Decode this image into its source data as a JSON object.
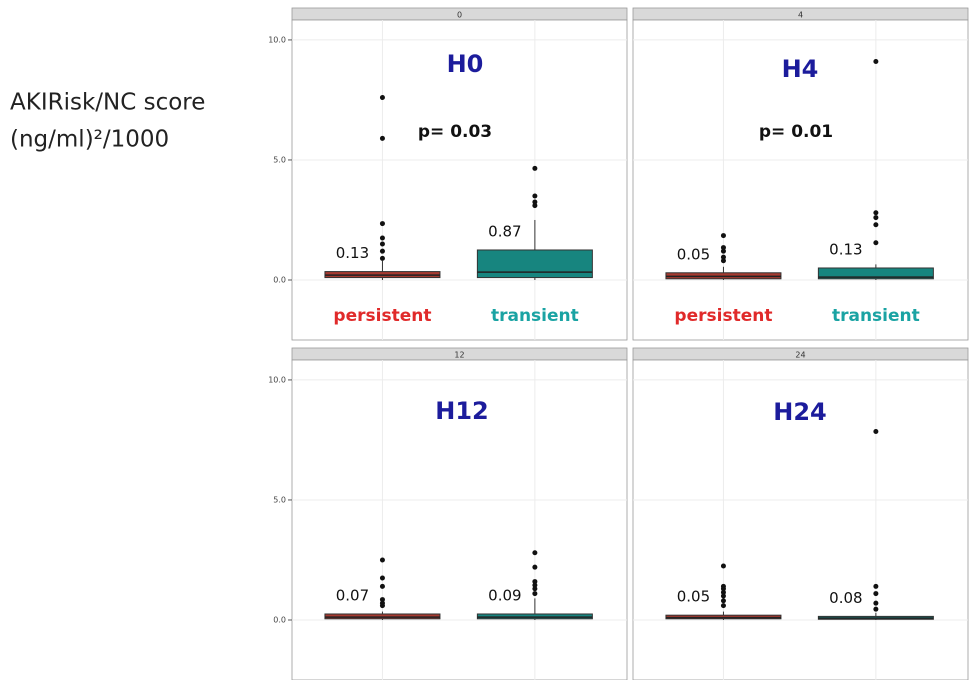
{
  "chart_data": {
    "type": "box",
    "ylabel": [
      "AKIRisk/NC score",
      "(ng/ml)²/1000"
    ],
    "ylim": [
      -2.5,
      10.83
    ],
    "yticks": [
      {
        "value": 0,
        "label": "0.0"
      },
      {
        "value": 5,
        "label": "5.0"
      },
      {
        "value": 10,
        "label": "10.0"
      }
    ],
    "grid": true,
    "categories": [
      "persistent",
      "transient"
    ],
    "box_colors": [
      "#a63a30",
      "#17857f"
    ],
    "category_colors": [
      "#e02a2a",
      "#1aa3a3"
    ],
    "title_color": "#1c1c9c",
    "panels": [
      {
        "strip": "0",
        "title": "H0",
        "p_text": "p= 0.03",
        "show_categories": true,
        "boxes": [
          {
            "q1": 0.1,
            "median": 0.2,
            "q3": 0.35,
            "whisker_low": 0,
            "whisker_high": 0.8,
            "outliers": [
              7.6,
              5.9,
              2.35,
              1.75,
              1.5,
              1.2,
              0.9
            ],
            "label": 0.13
          },
          {
            "q1": 0.1,
            "median": 0.33,
            "q3": 1.25,
            "whisker_low": 0,
            "whisker_high": 2.5,
            "outliers": [
              4.65,
              3.5,
              3.25,
              3.1
            ],
            "label": 0.87
          }
        ]
      },
      {
        "strip": "4",
        "title": "H4",
        "p_text": "p= 0.01",
        "show_categories": true,
        "boxes": [
          {
            "q1": 0.05,
            "median": 0.15,
            "q3": 0.3,
            "whisker_low": 0,
            "whisker_high": 0.55,
            "outliers": [
              1.85,
              1.35,
              1.2,
              0.95,
              0.8
            ],
            "label": 0.05
          },
          {
            "q1": 0.05,
            "median": 0.12,
            "q3": 0.5,
            "whisker_low": 0,
            "whisker_high": 0.65,
            "outliers": [
              9.1,
              2.8,
              2.6,
              2.3,
              1.55
            ],
            "label": 0.13
          }
        ]
      },
      {
        "strip": "12",
        "title": "H12",
        "show_categories": false,
        "boxes": [
          {
            "q1": 0.05,
            "median": 0.12,
            "q3": 0.25,
            "whisker_low": 0,
            "whisker_high": 0.35,
            "outliers": [
              2.5,
              1.75,
              1.4,
              0.85,
              0.7,
              0.6
            ],
            "label": 0.07
          },
          {
            "q1": 0.05,
            "median": 0.12,
            "q3": 0.25,
            "whisker_low": 0,
            "whisker_high": 0.9,
            "outliers": [
              2.8,
              2.2,
              1.6,
              1.45,
              1.3,
              1.1
            ],
            "label": 0.09
          }
        ]
      },
      {
        "strip": "24",
        "title": "H24",
        "show_categories": false,
        "boxes": [
          {
            "q1": 0.05,
            "median": 0.1,
            "q3": 0.2,
            "whisker_low": 0,
            "whisker_high": 0.35,
            "outliers": [
              2.25,
              1.4,
              1.3,
              1.15,
              1.0,
              0.8,
              0.6
            ],
            "label": 0.05
          },
          {
            "q1": 0.03,
            "median": 0.08,
            "q3": 0.15,
            "whisker_low": 0,
            "whisker_high": 0.3,
            "outliers": [
              7.85,
              1.4,
              1.1,
              0.7,
              0.45
            ],
            "label": 0.08
          }
        ]
      }
    ]
  }
}
